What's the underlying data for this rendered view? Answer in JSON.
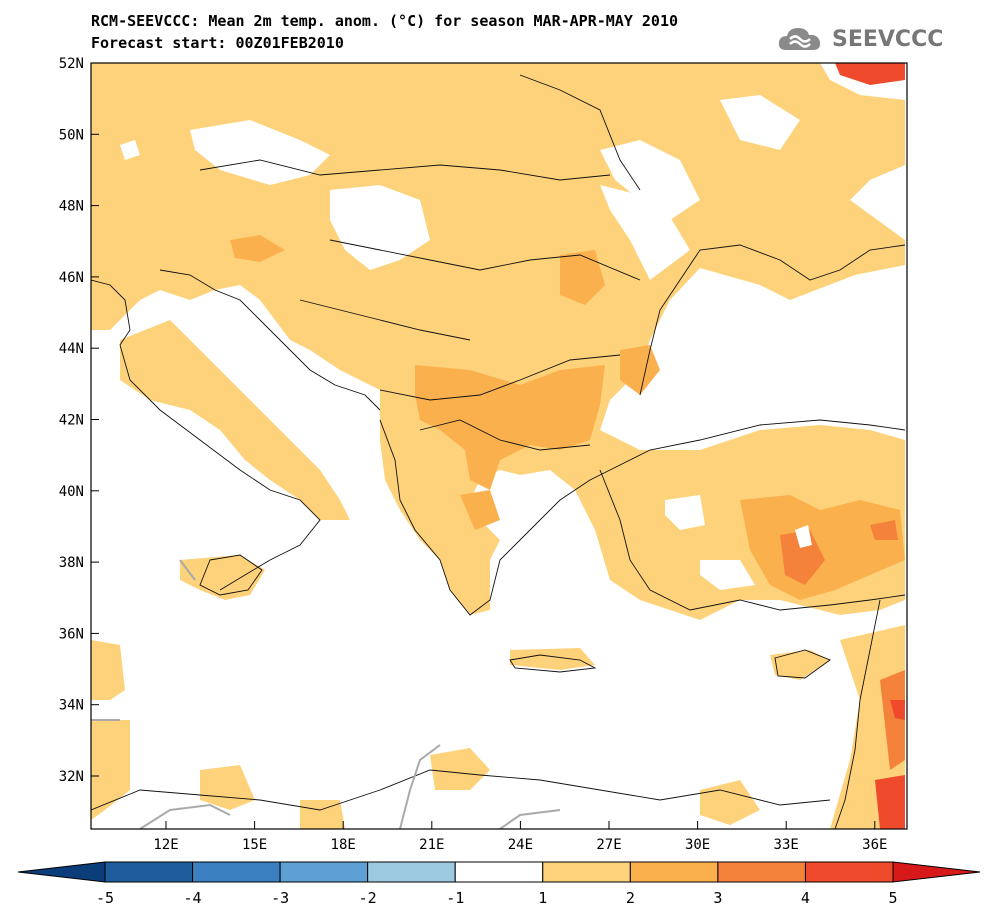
{
  "title_line1": "RCM-SEEVCCC: Mean 2m temp. anom. (°C) for season MAR-APR-MAY 2010",
  "title_line2": "Forecast start: 00Z01FEB2010",
  "logo_text": "SEEVCCC",
  "map": {
    "lat_labels": [
      "52N",
      "50N",
      "48N",
      "46N",
      "44N",
      "42N",
      "40N",
      "38N",
      "36N",
      "34N",
      "32N"
    ],
    "lon_labels": [
      "12E",
      "15E",
      "18E",
      "21E",
      "24E",
      "27E",
      "30E",
      "33E",
      "36E"
    ]
  },
  "colorbar": {
    "tick_labels": [
      "-5",
      "-4",
      "-3",
      "-2",
      "-1",
      "1",
      "2",
      "3",
      "4",
      "5"
    ],
    "colors": [
      "#1f5c9c",
      "#3a7fbf",
      "#5e9fd4",
      "#9ecae1",
      "#ffffff",
      "#fdd27a",
      "#fbb04e",
      "#f5823a",
      "#ef4a2c"
    ],
    "under_color": "#0b3d7a",
    "over_color": "#d7191c"
  }
}
